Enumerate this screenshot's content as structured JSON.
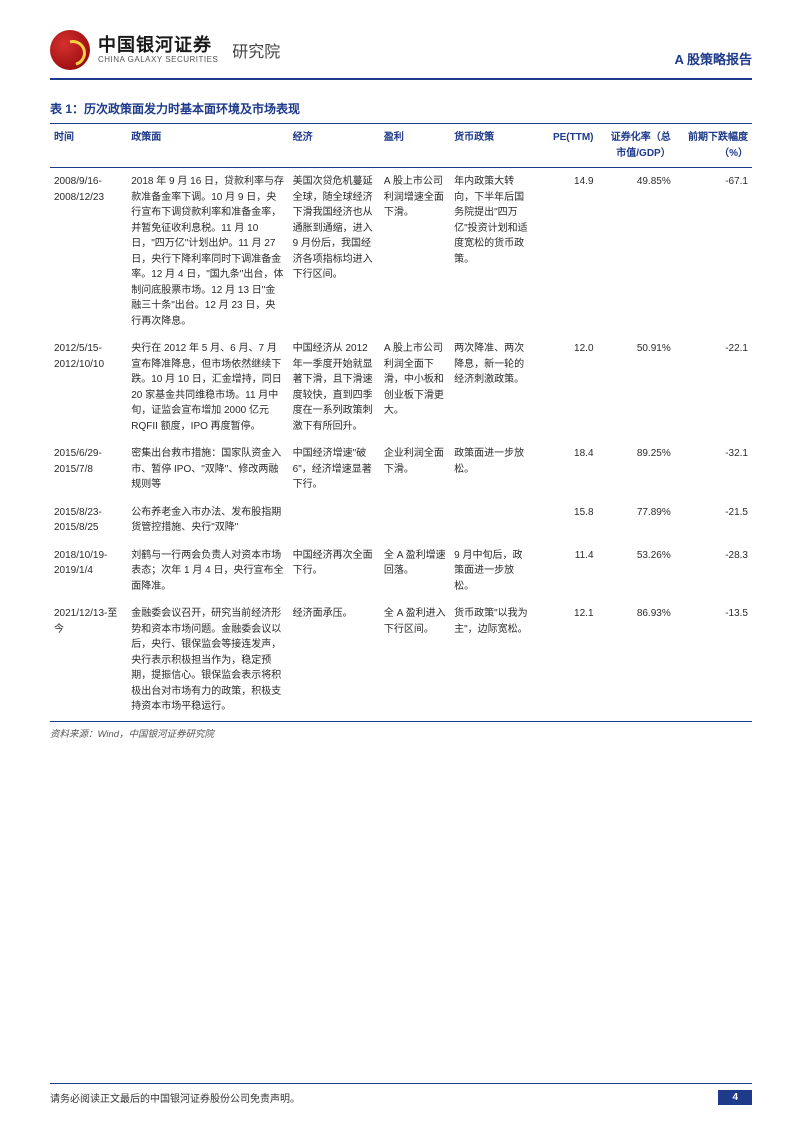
{
  "header": {
    "org_name_cn": "中国银河证券",
    "org_name_en": "CHINA GALAXY SECURITIES",
    "department": "研究院",
    "doc_type": "A 股策略报告"
  },
  "table": {
    "title": "表 1：历次政策面发力时基本面环境及市场表现",
    "columns": [
      "时间",
      "政策面",
      "经济",
      "盈利",
      "货币政策",
      "PE(TTM)",
      "证券化率（总市值/GDP）",
      "前期下跌幅度（%）"
    ],
    "rows": [
      {
        "time": "2008/9/16-2008/12/23",
        "policy": "2018 年 9 月 16 日，贷款利率与存款准备金率下调。10 月 9 日，央行宣布下调贷款利率和准备金率，并暂免征收利息税。11 月 10 日，\"四万亿\"计划出炉。11 月 27 日，央行下降利率同时下调准备金率。12 月 4 日，\"国九条\"出台，体制问底股票市场。12 月 13 日\"金融三十条\"出台。12 月 23 日，央行再次降息。",
        "econ": "美国次贷危机蔓延全球，随全球经济下滑我国经济也从通胀到通缩，进入 9 月份后，我国经济各项指标均进入下行区间。",
        "profit": "A 股上市公司利润增速全面下滑。",
        "money": "年内政策大转向，下半年后国务院提出\"四万亿\"投资计划和适度宽松的货币政策。",
        "pe": "14.9",
        "sec": "49.85%",
        "drop": "-67.1"
      },
      {
        "time": "2012/5/15-2012/10/10",
        "policy": "央行在 2012 年 5 月、6 月、7 月宣布降准降息，但市场依然继续下跌。10 月 10 日，汇金增持，同日 20 家基金共同维稳市场。11 月中旬，证监会宣布增加 2000 亿元 RQFII 额度，IPO 再度暂停。",
        "econ": "中国经济从 2012 年一季度开始就显著下滑，且下滑速度较快，直到四季度在一系列政策刺激下有所回升。",
        "profit": "A 股上市公司利润全面下滑，中小板和创业板下滑更大。",
        "money": "两次降准、两次降息，新一轮的经济刺激政策。",
        "pe": "12.0",
        "sec": "50.91%",
        "drop": "-22.1"
      },
      {
        "time": "2015/6/29-2015/7/8",
        "policy": "密集出台救市措施：国家队资金入市、暂停 IPO、\"双降\"、修改两融规则等",
        "econ": "中国经济增速\"破 6\"，经济增速显著下行。",
        "profit": "企业利润全面下滑。",
        "money": "政策面进一步放松。",
        "pe": "18.4",
        "sec": "89.25%",
        "drop": "-32.1"
      },
      {
        "time": "2015/8/23-2015/8/25",
        "policy": "公布养老金入市办法、发布股指期货管控措施、央行\"双降\"",
        "econ": "",
        "profit": "",
        "money": "",
        "pe": "15.8",
        "sec": "77.89%",
        "drop": "-21.5"
      },
      {
        "time": "2018/10/19-2019/1/4",
        "policy": "刘鹤与一行两会负责人对资本市场表态；次年 1 月 4 日，央行宣布全面降准。",
        "econ": "中国经济再次全面下行。",
        "profit": "全 A 盈利增速回落。",
        "money": "9 月中旬后，政策面进一步放松。",
        "pe": "11.4",
        "sec": "53.26%",
        "drop": "-28.3"
      },
      {
        "time": "2021/12/13-至今",
        "policy": "金融委会议召开，研究当前经济形势和资本市场问题。金融委会议以后，央行、银保监会等接连发声，央行表示积极担当作为，稳定预期，提振信心。银保监会表示将积极出台对市场有力的政策，积极支持资本市场平稳运行。",
        "econ": "经济面承压。",
        "profit": "全 A 盈利进入下行区间。",
        "money": "货币政策\"以我为主\"，边际宽松。",
        "pe": "12.1",
        "sec": "86.93%",
        "drop": "-13.5"
      }
    ],
    "source": "资料来源：Wind，中国银河证券研究院"
  },
  "footer": {
    "disclaimer": "请务必阅读正文最后的中国银河证券股份公司免责声明。",
    "page": "4"
  },
  "colors": {
    "brand_blue": "#1e3a8a",
    "brand_red": "#a81515"
  }
}
